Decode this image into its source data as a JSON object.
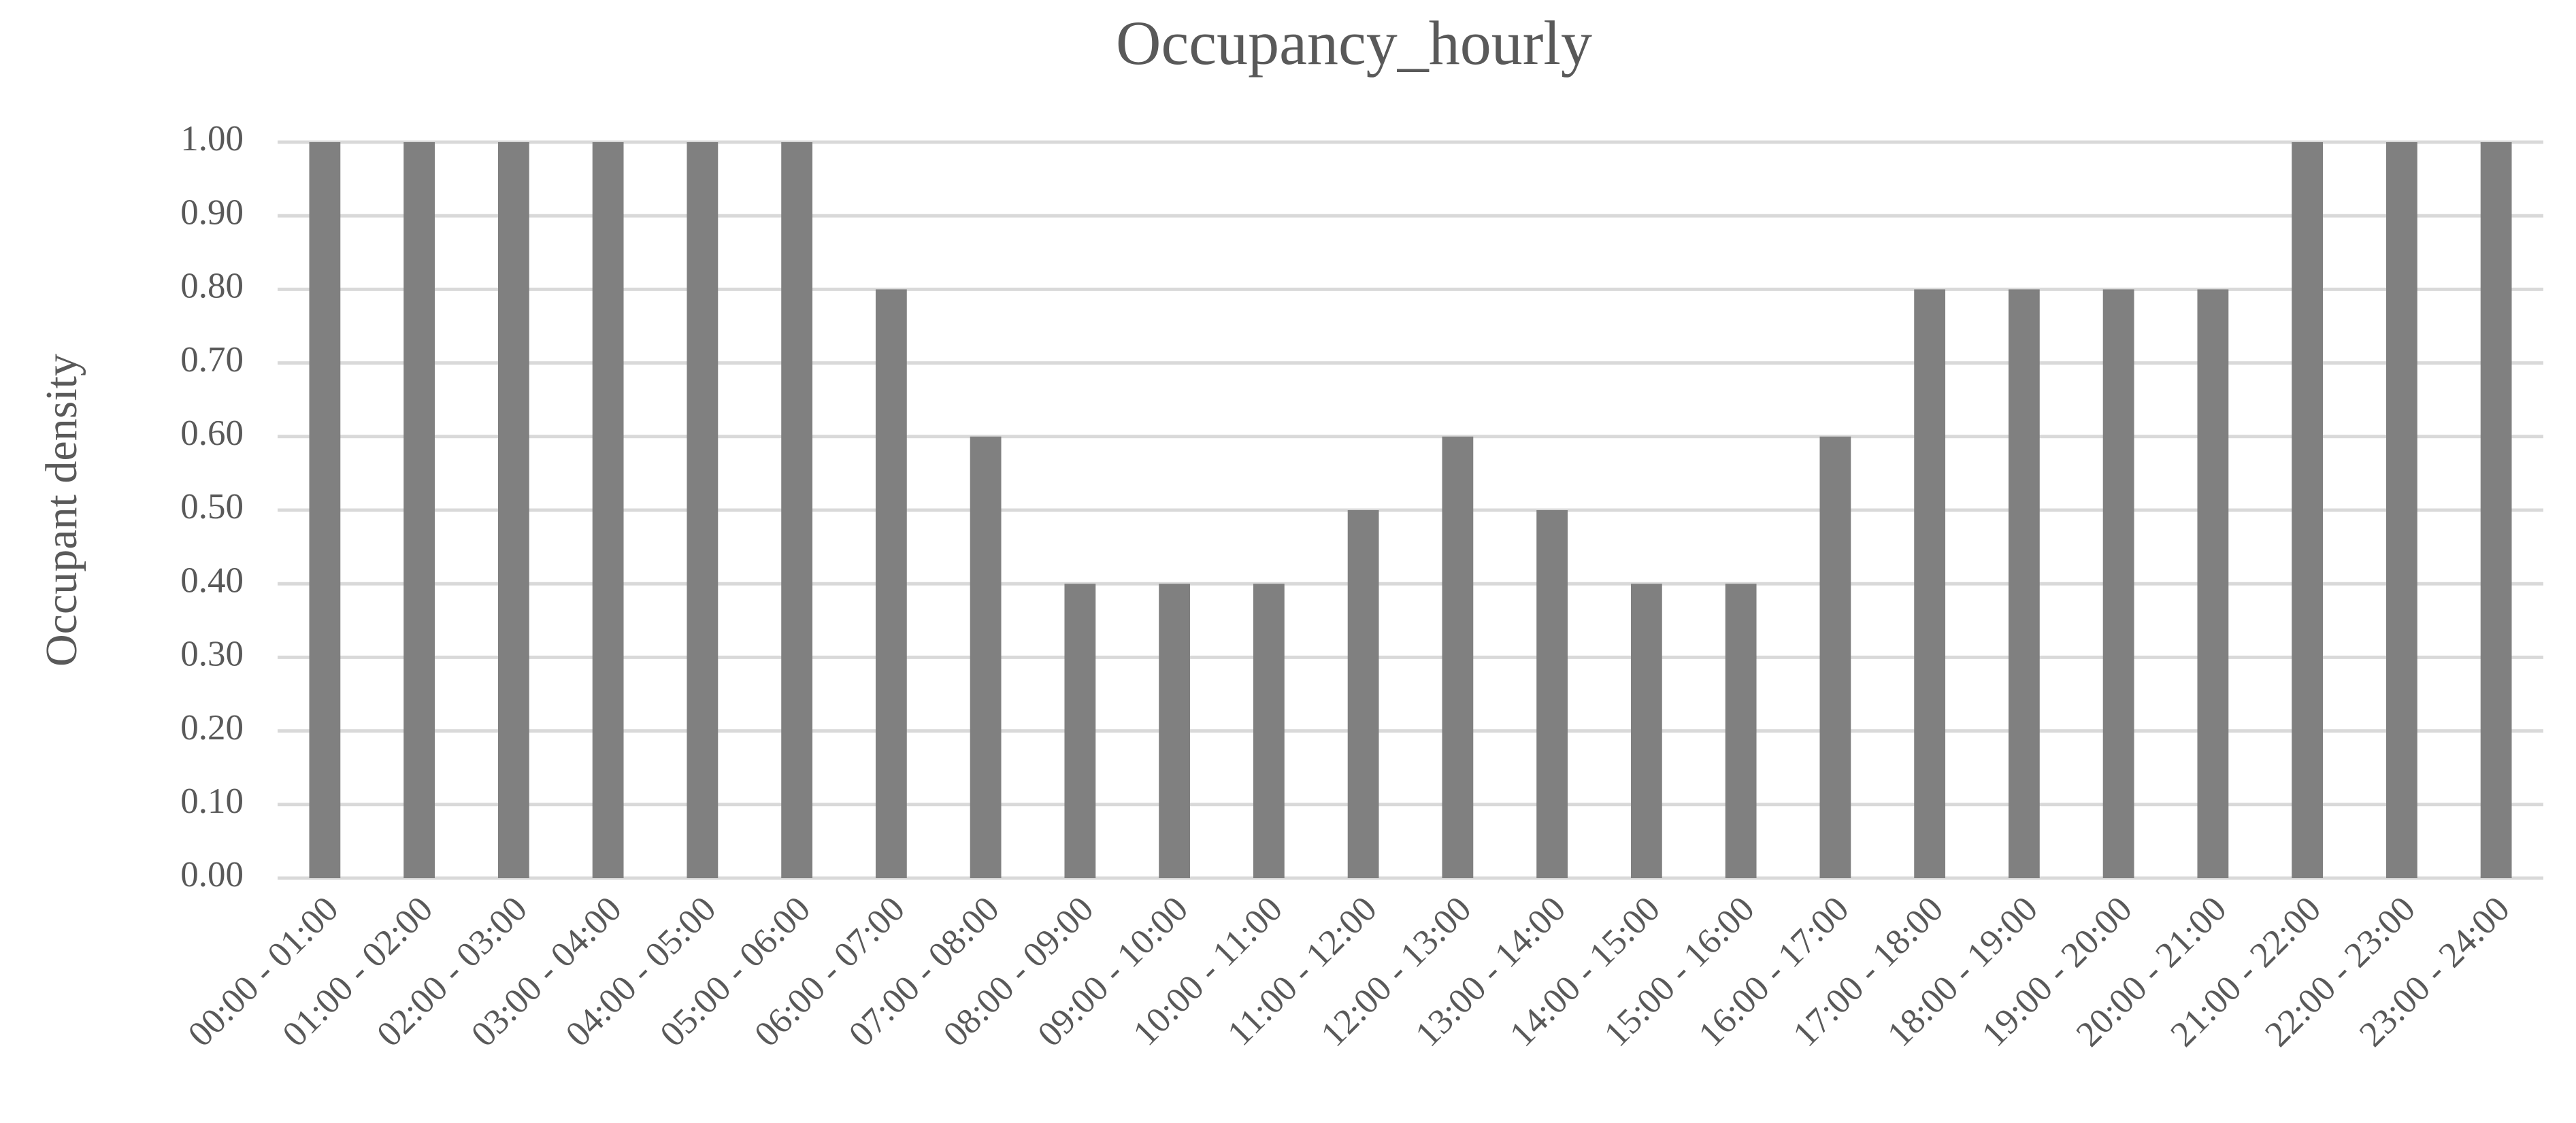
{
  "chart_data": {
    "type": "bar",
    "title": "Occupancy_hourly",
    "y_label": "Occupant density",
    "categories": [
      "00:00 - 01:00",
      "01:00 - 02:00",
      "02:00 - 03:00",
      "03:00 - 04:00",
      "04:00 - 05:00",
      "05:00 - 06:00",
      "06:00 - 07:00",
      "07:00 - 08:00",
      "08:00 - 09:00",
      "09:00 - 10:00",
      "10:00 - 11:00",
      "11:00 - 12:00",
      "12:00 - 13:00",
      "13:00 - 14:00",
      "14:00 - 15:00",
      "15:00 - 16:00",
      "16:00 - 17:00",
      "17:00 - 18:00",
      "18:00 - 19:00",
      "19:00 - 20:00",
      "20:00 - 21:00",
      "21:00 - 22:00",
      "22:00 - 23:00",
      "23:00 - 24:00"
    ],
    "values": [
      1,
      1,
      1,
      1,
      1,
      1,
      0.8,
      0.6,
      0.4,
      0.4,
      0.4,
      0.5,
      0.6,
      0.5,
      0.4,
      0.4,
      0.6,
      0.8,
      0.8,
      0.8,
      0.8,
      1,
      1,
      1
    ],
    "color": "#808080",
    "ylim": [
      0,
      1
    ],
    "yticks": [
      {
        "value": 0,
        "label": "0.00"
      },
      {
        "value": 0.1,
        "label": "0.10"
      },
      {
        "value": 0.2,
        "label": "0.20"
      },
      {
        "value": 0.3,
        "label": "0.30"
      },
      {
        "value": 0.4,
        "label": "0.40"
      },
      {
        "value": 0.5,
        "label": "0.50"
      },
      {
        "value": 0.6,
        "label": "0.60"
      },
      {
        "value": 0.7,
        "label": "0.70"
      },
      {
        "value": 0.8,
        "label": "0.80"
      },
      {
        "value": 0.9,
        "label": "0.90"
      },
      {
        "value": 1,
        "label": "1.00"
      }
    ],
    "grid": true
  }
}
